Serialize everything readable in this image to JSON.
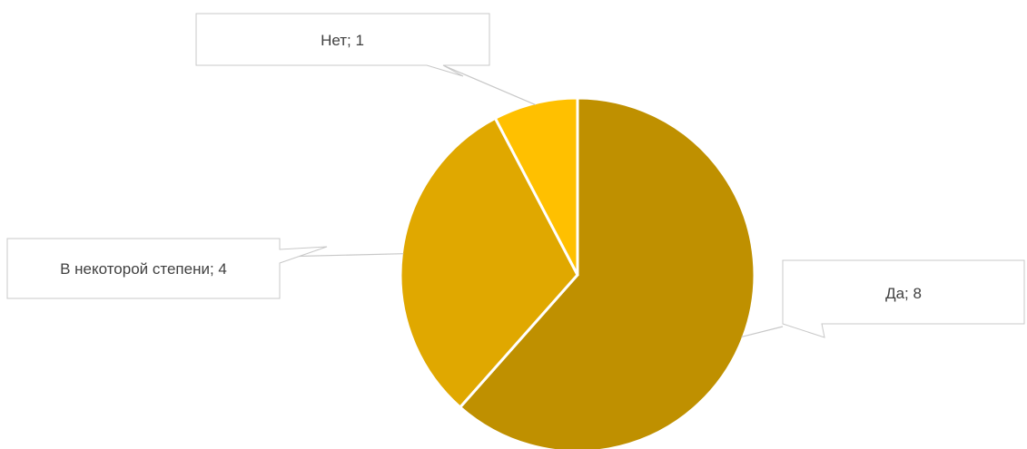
{
  "chart_data": {
    "type": "pie",
    "categories": [
      "Да",
      "В некоторой степени",
      "Нет"
    ],
    "values": [
      8,
      4,
      1
    ],
    "labels": [
      "Да; 8",
      "В некоторой степени; 4",
      "Нет; 1"
    ],
    "colors": [
      "#BF9000",
      "#E0A800",
      "#FFC000"
    ],
    "start_angle": "12 o'clock",
    "direction": "clockwise",
    "title": "",
    "legend": "none",
    "data_label_style": "callouts"
  }
}
